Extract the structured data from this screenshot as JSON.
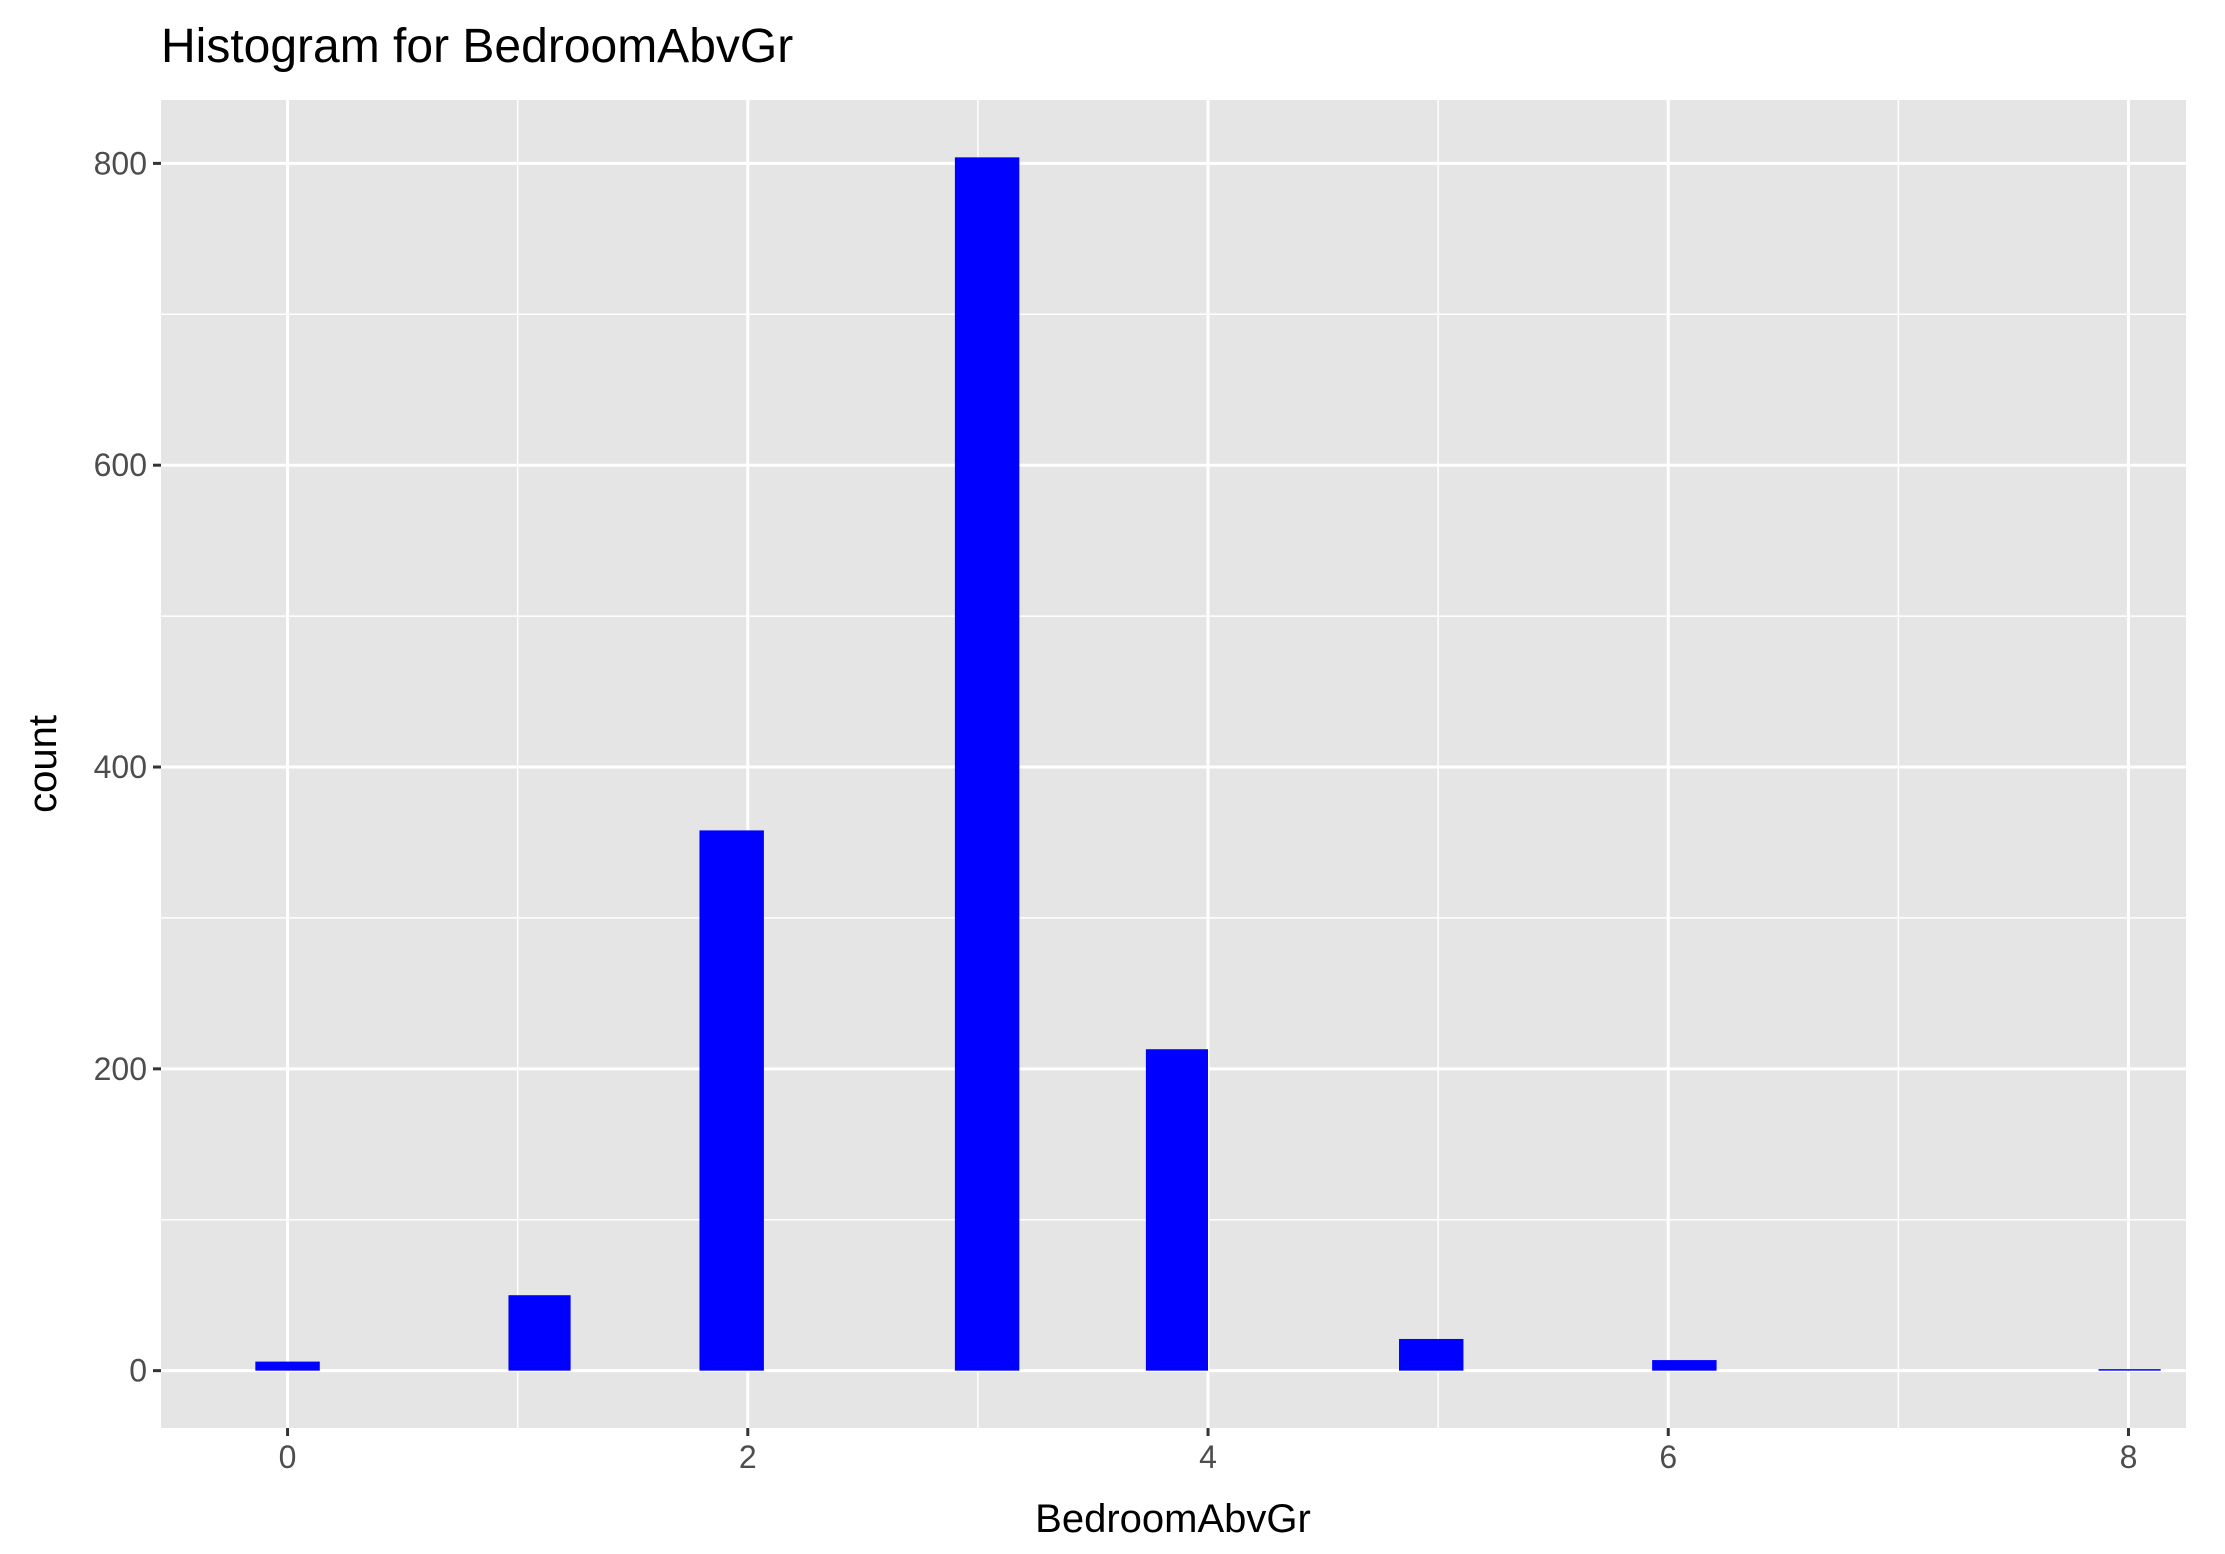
{
  "chart_data": {
    "type": "bar",
    "title": "Histogram for BedroomAbvGr",
    "xlabel": "BedroomAbvGr",
    "ylabel": "count",
    "xlim": [
      -0.55,
      8.25
    ],
    "ylim": [
      -38,
      842
    ],
    "x_ticks": [
      0,
      2,
      4,
      6,
      8
    ],
    "x_minor_ticks": [
      1,
      3,
      5,
      7
    ],
    "y_ticks": [
      0,
      200,
      400,
      600,
      800
    ],
    "y_minor_ticks": [
      100,
      300,
      500,
      700
    ],
    "grid": true,
    "bars": [
      {
        "x0": -0.14,
        "x1": 0.14,
        "value": 6
      },
      {
        "x0": 0.96,
        "x1": 1.23,
        "value": 50
      },
      {
        "x0": 1.79,
        "x1": 2.07,
        "value": 358
      },
      {
        "x0": 2.9,
        "x1": 3.18,
        "value": 804
      },
      {
        "x0": 3.73,
        "x1": 4.0,
        "value": 213
      },
      {
        "x0": 4.83,
        "x1": 5.11,
        "value": 21
      },
      {
        "x0": 5.93,
        "x1": 6.21,
        "value": 7
      },
      {
        "x0": 7.87,
        "x1": 8.14,
        "value": 1
      }
    ],
    "colors": {
      "bar": "#0000ff",
      "panel": "#e5e5e5"
    }
  }
}
